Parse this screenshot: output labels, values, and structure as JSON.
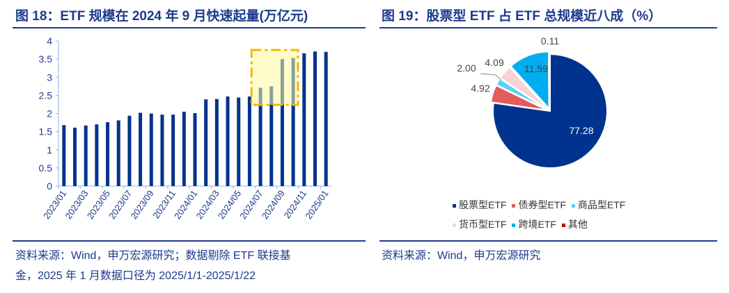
{
  "left": {
    "title": "图 18：ETF 规模在 2024 年 9 月快速起量(万亿元)",
    "source_line1": "资料来源：Wind，申万宏源研究；数据剔除 ETF 联接基",
    "source_line2": "金，2025 年 1 月数据口径为 2025/1/1-2025/1/22"
  },
  "right": {
    "title": "图 19：股票型 ETF 占 ETF 总规模近八成（%）",
    "source": "资料来源：Wind，申万宏源研究"
  },
  "chart_data": [
    {
      "type": "bar",
      "title": "ETF 规模在 2024 年 9 月快速起量(万亿元)",
      "categories": [
        "2023/01",
        "2023/02",
        "2023/03",
        "2023/04",
        "2023/05",
        "2023/06",
        "2023/07",
        "2023/08",
        "2023/09",
        "2023/10",
        "2023/11",
        "2023/12",
        "2024/01",
        "2024/02",
        "2024/03",
        "2024/04",
        "2024/05",
        "2024/06",
        "2024/07",
        "2024/08",
        "2024/09",
        "2024/10",
        "2024/11",
        "2024/12",
        "2025/01"
      ],
      "tick_labels": [
        "2023/01",
        "2023/03",
        "2023/05",
        "2023/07",
        "2023/09",
        "2023/11",
        "2024/01",
        "2024/03",
        "2024/05",
        "2024/07",
        "2024/09",
        "2024/11",
        "2025/01"
      ],
      "values": [
        1.68,
        1.61,
        1.67,
        1.7,
        1.76,
        1.81,
        1.94,
        2.02,
        2.0,
        1.97,
        1.97,
        2.05,
        2.01,
        2.39,
        2.4,
        2.47,
        2.44,
        2.47,
        2.71,
        2.75,
        3.5,
        3.53,
        3.66,
        3.71,
        3.7
      ],
      "ylim": [
        0,
        4
      ],
      "yticks": [
        "0",
        "0.5",
        "1",
        "1.5",
        "2",
        "2.5",
        "3",
        "3.5",
        "4"
      ],
      "color": "#00338e",
      "highlight": {
        "from": "2024/07",
        "to": "2024/10",
        "color": "#f5b800"
      }
    },
    {
      "type": "pie",
      "title": "股票型 ETF 占 ETF 总规模近八成（%）",
      "slices": [
        {
          "name": "股票型ETF",
          "value": 77.28,
          "label": "77.28",
          "color": "#00338e"
        },
        {
          "name": "债券型ETF",
          "value": 4.92,
          "label": "4.92",
          "color": "#e35b5b"
        },
        {
          "name": "商品型ETF",
          "value": 2.0,
          "label": "2.00",
          "color": "#5ccff4"
        },
        {
          "name": "货币型ETF",
          "value": 4.09,
          "label": "4.09",
          "color": "#f6d3d5"
        },
        {
          "name": "跨境ETF",
          "value": 11.59,
          "label": "11.59",
          "color": "#00aeef"
        },
        {
          "name": "其他",
          "value": 0.11,
          "label": "0.11",
          "color": "#c00000"
        }
      ],
      "legend_position": "bottom"
    }
  ]
}
